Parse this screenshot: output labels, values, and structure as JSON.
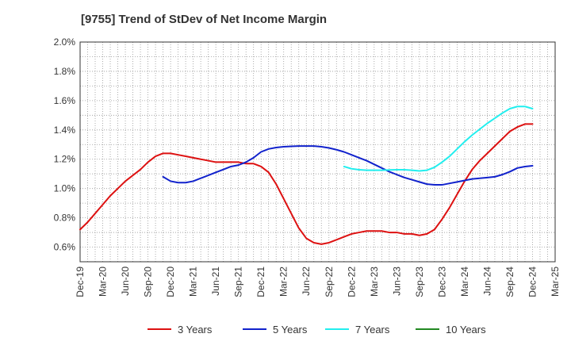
{
  "chart_data": {
    "type": "line",
    "title": "[9755]  Trend of StDev of Net Income Margin",
    "xlabel": "",
    "ylabel": "",
    "ylim": [
      0.5,
      2.0
    ],
    "y_ticks": [
      "0.6%",
      "0.8%",
      "1.0%",
      "1.2%",
      "1.4%",
      "1.6%",
      "1.8%",
      "2.0%"
    ],
    "y_tick_values": [
      0.6,
      0.8,
      1.0,
      1.2,
      1.4,
      1.6,
      1.8,
      2.0
    ],
    "x_ticks": [
      "Dec-19",
      "Mar-20",
      "Jun-20",
      "Sep-20",
      "Dec-20",
      "Mar-21",
      "Jun-21",
      "Sep-21",
      "Dec-21",
      "Mar-22",
      "Jun-22",
      "Sep-22",
      "Dec-22",
      "Mar-23",
      "Jun-23",
      "Sep-23",
      "Dec-23",
      "Mar-24",
      "Jun-24",
      "Sep-24",
      "Dec-24",
      "Mar-25"
    ],
    "grid": true,
    "legend_position": "bottom",
    "series": [
      {
        "name": "3 Years",
        "color": "#dd1111",
        "points": [
          [
            "Dec-19",
            0.72
          ],
          [
            "Jan-20",
            0.77
          ],
          [
            "Feb-20",
            0.83
          ],
          [
            "Mar-20",
            0.89
          ],
          [
            "Apr-20",
            0.95
          ],
          [
            "May-20",
            1.0
          ],
          [
            "Jun-20",
            1.05
          ],
          [
            "Jul-20",
            1.09
          ],
          [
            "Aug-20",
            1.13
          ],
          [
            "Sep-20",
            1.18
          ],
          [
            "Oct-20",
            1.22
          ],
          [
            "Nov-20",
            1.24
          ],
          [
            "Dec-20",
            1.24
          ],
          [
            "Jan-21",
            1.23
          ],
          [
            "Feb-21",
            1.22
          ],
          [
            "Mar-21",
            1.21
          ],
          [
            "Apr-21",
            1.2
          ],
          [
            "May-21",
            1.19
          ],
          [
            "Jun-21",
            1.18
          ],
          [
            "Jul-21",
            1.18
          ],
          [
            "Aug-21",
            1.18
          ],
          [
            "Sep-21",
            1.18
          ],
          [
            "Oct-21",
            1.17
          ],
          [
            "Nov-21",
            1.17
          ],
          [
            "Dec-21",
            1.15
          ],
          [
            "Jan-22",
            1.11
          ],
          [
            "Feb-22",
            1.03
          ],
          [
            "Mar-22",
            0.93
          ],
          [
            "Apr-22",
            0.83
          ],
          [
            "May-22",
            0.73
          ],
          [
            "Jun-22",
            0.66
          ],
          [
            "Jul-22",
            0.63
          ],
          [
            "Aug-22",
            0.62
          ],
          [
            "Sep-22",
            0.63
          ],
          [
            "Oct-22",
            0.65
          ],
          [
            "Nov-22",
            0.67
          ],
          [
            "Dec-22",
            0.69
          ],
          [
            "Jan-23",
            0.7
          ],
          [
            "Feb-23",
            0.71
          ],
          [
            "Mar-23",
            0.71
          ],
          [
            "Apr-23",
            0.71
          ],
          [
            "May-23",
            0.7
          ],
          [
            "Jun-23",
            0.7
          ],
          [
            "Jul-23",
            0.69
          ],
          [
            "Aug-23",
            0.69
          ],
          [
            "Sep-23",
            0.68
          ],
          [
            "Oct-23",
            0.69
          ],
          [
            "Nov-23",
            0.72
          ],
          [
            "Dec-23",
            0.79
          ],
          [
            "Jan-24",
            0.87
          ],
          [
            "Feb-24",
            0.96
          ],
          [
            "Mar-24",
            1.05
          ],
          [
            "Apr-24",
            1.13
          ],
          [
            "May-24",
            1.19
          ],
          [
            "Jun-24",
            1.24
          ],
          [
            "Jul-24",
            1.29
          ],
          [
            "Aug-24",
            1.34
          ],
          [
            "Sep-24",
            1.39
          ],
          [
            "Oct-24",
            1.42
          ],
          [
            "Nov-24",
            1.44
          ],
          [
            "Dec-24",
            1.44
          ]
        ]
      },
      {
        "name": "5 Years",
        "color": "#1122cc",
        "points": [
          [
            "Nov-20",
            1.08
          ],
          [
            "Dec-20",
            1.05
          ],
          [
            "Jan-21",
            1.04
          ],
          [
            "Feb-21",
            1.04
          ],
          [
            "Mar-21",
            1.05
          ],
          [
            "Apr-21",
            1.07
          ],
          [
            "May-21",
            1.09
          ],
          [
            "Jun-21",
            1.11
          ],
          [
            "Jul-21",
            1.13
          ],
          [
            "Aug-21",
            1.15
          ],
          [
            "Sep-21",
            1.16
          ],
          [
            "Oct-21",
            1.18
          ],
          [
            "Nov-21",
            1.21
          ],
          [
            "Dec-21",
            1.25
          ],
          [
            "Jan-22",
            1.27
          ],
          [
            "Feb-22",
            1.28
          ],
          [
            "Mar-22",
            1.285
          ],
          [
            "Apr-22",
            1.288
          ],
          [
            "May-22",
            1.29
          ],
          [
            "Jun-22",
            1.29
          ],
          [
            "Jul-22",
            1.29
          ],
          [
            "Aug-22",
            1.285
          ],
          [
            "Sep-22",
            1.277
          ],
          [
            "Oct-22",
            1.265
          ],
          [
            "Nov-22",
            1.25
          ],
          [
            "Dec-22",
            1.23
          ],
          [
            "Jan-23",
            1.21
          ],
          [
            "Feb-23",
            1.19
          ],
          [
            "Mar-23",
            1.165
          ],
          [
            "Apr-23",
            1.14
          ],
          [
            "May-23",
            1.115
          ],
          [
            "Jun-23",
            1.095
          ],
          [
            "Jul-23",
            1.075
          ],
          [
            "Aug-23",
            1.06
          ],
          [
            "Sep-23",
            1.045
          ],
          [
            "Oct-23",
            1.03
          ],
          [
            "Nov-23",
            1.025
          ],
          [
            "Dec-23",
            1.025
          ],
          [
            "Jan-24",
            1.035
          ],
          [
            "Feb-24",
            1.045
          ],
          [
            "Mar-24",
            1.055
          ],
          [
            "Apr-24",
            1.065
          ],
          [
            "May-24",
            1.07
          ],
          [
            "Jun-24",
            1.075
          ],
          [
            "Jul-24",
            1.08
          ],
          [
            "Aug-24",
            1.095
          ],
          [
            "Sep-24",
            1.115
          ],
          [
            "Oct-24",
            1.14
          ],
          [
            "Nov-24",
            1.15
          ],
          [
            "Dec-24",
            1.155
          ]
        ]
      },
      {
        "name": "7 Years",
        "color": "#22eeee",
        "points": [
          [
            "Nov-22",
            1.15
          ],
          [
            "Dec-22",
            1.135
          ],
          [
            "Jan-23",
            1.128
          ],
          [
            "Feb-23",
            1.125
          ],
          [
            "Mar-23",
            1.125
          ],
          [
            "Apr-23",
            1.125
          ],
          [
            "May-23",
            1.127
          ],
          [
            "Jun-23",
            1.128
          ],
          [
            "Jul-23",
            1.128
          ],
          [
            "Aug-23",
            1.125
          ],
          [
            "Sep-23",
            1.12
          ],
          [
            "Oct-23",
            1.125
          ],
          [
            "Nov-23",
            1.145
          ],
          [
            "Dec-23",
            1.18
          ],
          [
            "Jan-24",
            1.22
          ],
          [
            "Feb-24",
            1.27
          ],
          [
            "Mar-24",
            1.32
          ],
          [
            "Apr-24",
            1.365
          ],
          [
            "May-24",
            1.405
          ],
          [
            "Jun-24",
            1.445
          ],
          [
            "Jul-24",
            1.48
          ],
          [
            "Aug-24",
            1.515
          ],
          [
            "Sep-24",
            1.545
          ],
          [
            "Oct-24",
            1.56
          ],
          [
            "Nov-24",
            1.56
          ],
          [
            "Dec-24",
            1.545
          ]
        ]
      },
      {
        "name": "10 Years",
        "color": "#228822",
        "points": []
      }
    ]
  }
}
